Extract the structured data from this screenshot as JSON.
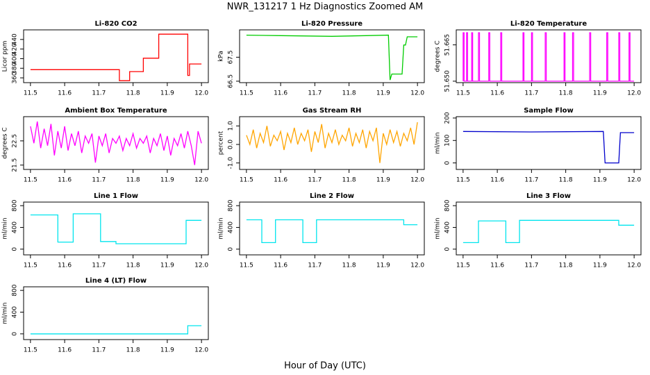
{
  "title": "NWR_131217  1 Hz Diagnostics Zoomed AM",
  "x_label": "Hour of Day (UTC)",
  "chart_data": [
    {
      "type": "line",
      "title": "Li-820 CO2",
      "ylabel": "Licor ppm",
      "color": "#ff0000",
      "xlim": [
        11.48,
        12.02
      ],
      "ylim": [
        350,
        460
      ],
      "xticks": [
        11.5,
        11.6,
        11.7,
        11.8,
        11.9,
        {
          "value": 12,
          "label": "12.0"
        }
      ],
      "yticks": [
        360,
        380,
        400,
        420,
        440
      ],
      "x": [
        11.5,
        11.76,
        11.76,
        11.79,
        11.79,
        11.83,
        11.83,
        11.875,
        11.875,
        11.96,
        11.96,
        11.965,
        11.965,
        12.0
      ],
      "values": [
        377,
        377,
        354,
        354,
        373,
        373,
        401,
        401,
        451,
        451,
        365,
        365,
        389,
        389
      ]
    },
    {
      "type": "line",
      "title": "Li-820 Pressure",
      "ylabel": "kPa",
      "color": "#00cc00",
      "xlim": [
        11.48,
        12.02
      ],
      "ylim": [
        66.44,
        68.64
      ],
      "xticks": [
        11.5,
        11.6,
        11.7,
        11.8,
        11.9,
        {
          "value": 12,
          "label": "12.0"
        }
      ],
      "yticks": [
        66.5,
        67.5
      ],
      "x": [
        11.5,
        11.6,
        11.75,
        11.85,
        11.915,
        11.92,
        11.925,
        11.955,
        11.96,
        11.965,
        11.97,
        12.0
      ],
      "values": [
        68.42,
        68.4,
        68.37,
        68.4,
        68.42,
        66.55,
        66.8,
        66.8,
        68.01,
        68.01,
        68.35,
        68.35
      ]
    },
    {
      "type": "line",
      "title": "Li-820 Temperature",
      "ylabel": "degrees C",
      "color": "#ff00ff",
      "xlim": [
        11.48,
        12.02
      ],
      "ylim": [
        51.6494,
        51.6712
      ],
      "xticks": [
        11.5,
        11.6,
        11.7,
        11.8,
        11.9,
        {
          "value": 12,
          "label": "12.0"
        }
      ],
      "yticks": [
        {
          "value": 51.65,
          "label": "51.650"
        },
        {
          "value": 51.665,
          "label": "51.665"
        }
      ],
      "x": [
        11.5,
        11.5,
        11.503,
        11.503,
        11.51,
        11.51,
        11.513,
        11.513,
        11.525,
        11.525,
        11.528,
        11.528,
        11.545,
        11.545,
        11.548,
        11.548,
        11.575,
        11.575,
        11.578,
        11.578,
        11.61,
        11.61,
        11.613,
        11.613,
        11.675,
        11.675,
        11.678,
        11.678,
        11.7,
        11.7,
        11.703,
        11.703,
        11.74,
        11.74,
        11.743,
        11.743,
        11.795,
        11.795,
        11.798,
        11.798,
        11.82,
        11.82,
        11.823,
        11.823,
        11.87,
        11.87,
        11.873,
        11.873,
        11.92,
        11.92,
        11.923,
        11.923,
        11.955,
        11.955,
        11.958,
        11.958,
        11.985,
        11.985,
        11.988,
        11.988,
        12.0
      ],
      "values": [
        51.65,
        51.67,
        51.67,
        51.65,
        51.65,
        51.67,
        51.67,
        51.65,
        51.65,
        51.67,
        51.67,
        51.65,
        51.65,
        51.67,
        51.67,
        51.65,
        51.65,
        51.67,
        51.67,
        51.65,
        51.65,
        51.67,
        51.67,
        51.65,
        51.65,
        51.67,
        51.67,
        51.65,
        51.65,
        51.67,
        51.67,
        51.65,
        51.65,
        51.67,
        51.67,
        51.65,
        51.65,
        51.67,
        51.67,
        51.65,
        51.65,
        51.67,
        51.67,
        51.65,
        51.65,
        51.67,
        51.67,
        51.65,
        51.65,
        51.67,
        51.67,
        51.65,
        51.65,
        51.67,
        51.67,
        51.65,
        51.65,
        51.67,
        51.67,
        51.65,
        51.65
      ]
    },
    {
      "type": "line",
      "title": "Ambient Box Temperature",
      "ylabel": "degrees C",
      "color": "#ff00ff",
      "xlim": [
        11.48,
        12.02
      ],
      "ylim": [
        21.32,
        23.5
      ],
      "xticks": [
        11.5,
        11.6,
        11.7,
        11.8,
        11.9,
        {
          "value": 12,
          "label": "12.0"
        }
      ],
      "yticks": [
        21.5,
        22.5
      ],
      "x": [
        11.5,
        11.51,
        11.52,
        11.53,
        11.54,
        11.55,
        11.56,
        11.57,
        11.58,
        11.59,
        11.6,
        11.61,
        11.62,
        11.63,
        11.64,
        11.65,
        11.66,
        11.67,
        11.68,
        11.69,
        11.7,
        11.71,
        11.72,
        11.73,
        11.74,
        11.75,
        11.76,
        11.77,
        11.78,
        11.79,
        11.8,
        11.81,
        11.82,
        11.83,
        11.84,
        11.85,
        11.86,
        11.87,
        11.88,
        11.89,
        11.9,
        11.91,
        11.92,
        11.93,
        11.94,
        11.95,
        11.96,
        11.97,
        11.98,
        11.99,
        12.0
      ],
      "values": [
        23.1,
        22.4,
        23.3,
        22.2,
        23.0,
        22.3,
        23.2,
        21.9,
        22.9,
        22.2,
        23.1,
        22.1,
        22.8,
        22.3,
        22.9,
        22.0,
        22.7,
        22.4,
        22.8,
        21.6,
        22.7,
        22.3,
        22.8,
        22.0,
        22.6,
        22.4,
        22.7,
        22.1,
        22.6,
        22.3,
        22.8,
        22.2,
        22.6,
        22.4,
        22.7,
        22.0,
        22.6,
        22.3,
        22.8,
        22.1,
        22.7,
        21.9,
        22.6,
        22.3,
        22.8,
        22.2,
        22.9,
        22.3,
        21.5,
        22.9,
        22.4
      ]
    },
    {
      "type": "line",
      "title": "Gas Stream RH",
      "ylabel": "percent",
      "color": "#ffa500",
      "xlim": [
        11.48,
        12.02
      ],
      "ylim": [
        -1.35,
        1.5
      ],
      "xticks": [
        11.5,
        11.6,
        11.7,
        11.8,
        11.9,
        {
          "value": 12,
          "label": "12.0"
        }
      ],
      "yticks": [
        {
          "value": -1,
          "label": "-1.0"
        },
        {
          "value": 0,
          "label": "0.0"
        },
        {
          "value": 1,
          "label": "1.0"
        }
      ],
      "x": [
        11.5,
        11.51,
        11.52,
        11.53,
        11.54,
        11.55,
        11.56,
        11.57,
        11.58,
        11.59,
        11.6,
        11.61,
        11.62,
        11.63,
        11.64,
        11.65,
        11.66,
        11.67,
        11.68,
        11.69,
        11.7,
        11.71,
        11.72,
        11.73,
        11.74,
        11.75,
        11.76,
        11.77,
        11.78,
        11.79,
        11.8,
        11.81,
        11.82,
        11.83,
        11.84,
        11.85,
        11.86,
        11.87,
        11.88,
        11.89,
        11.9,
        11.91,
        11.92,
        11.93,
        11.94,
        11.95,
        11.96,
        11.97,
        11.98,
        11.99,
        12.0
      ],
      "values": [
        0.5,
        0.0,
        0.8,
        -0.2,
        0.6,
        0.1,
        1.0,
        -0.1,
        0.5,
        0.2,
        0.7,
        -0.3,
        0.6,
        0.1,
        0.9,
        0.0,
        0.6,
        0.2,
        0.8,
        -0.4,
        0.7,
        0.1,
        1.1,
        -0.2,
        0.6,
        0.1,
        0.8,
        0.0,
        0.5,
        0.2,
        0.9,
        -0.1,
        0.6,
        0.1,
        0.8,
        -0.2,
        0.7,
        0.2,
        0.9,
        -1.0,
        0.6,
        0.0,
        0.8,
        0.1,
        0.7,
        -0.1,
        0.6,
        0.2,
        0.9,
        0.0,
        1.2
      ]
    },
    {
      "type": "line",
      "title": "Sample Flow",
      "ylabel": "ml/min",
      "color": "#0000cc",
      "xlim": [
        11.48,
        12.02
      ],
      "ylim": [
        -29,
        206
      ],
      "xticks": [
        11.5,
        11.6,
        11.7,
        11.8,
        11.9,
        {
          "value": 12,
          "label": "12.0"
        }
      ],
      "yticks": [
        0,
        100,
        200
      ],
      "x": [
        11.5,
        11.7,
        11.91,
        11.915,
        11.955,
        11.96,
        12.0
      ],
      "values": [
        140,
        138,
        140,
        0,
        0,
        135,
        135
      ]
    },
    {
      "type": "line",
      "title": "Line 1 Flow",
      "ylabel": "ml/min",
      "color": "#00e5ee",
      "xlim": [
        11.48,
        12.02
      ],
      "ylim": [
        -105,
        866
      ],
      "xticks": [
        11.5,
        11.6,
        11.7,
        11.8,
        11.9,
        {
          "value": 12,
          "label": "12.0"
        }
      ],
      "yticks": [
        0,
        400,
        800
      ],
      "x": [
        11.5,
        11.58,
        11.58,
        11.625,
        11.625,
        11.705,
        11.705,
        11.75,
        11.75,
        11.955,
        11.955,
        12.0
      ],
      "values": [
        630,
        630,
        130,
        130,
        650,
        650,
        140,
        140,
        100,
        100,
        530,
        530
      ]
    },
    {
      "type": "line",
      "title": "Line 2 Flow",
      "ylabel": "ml/min",
      "color": "#00e5ee",
      "xlim": [
        11.48,
        12.02
      ],
      "ylim": [
        -105,
        866
      ],
      "xticks": [
        11.5,
        11.6,
        11.7,
        11.8,
        11.9,
        {
          "value": 12,
          "label": "12.0"
        }
      ],
      "yticks": [
        0,
        400,
        800
      ],
      "x": [
        11.5,
        11.545,
        11.545,
        11.585,
        11.585,
        11.665,
        11.665,
        11.705,
        11.705,
        11.96,
        11.96,
        12.0
      ],
      "values": [
        540,
        540,
        120,
        120,
        540,
        540,
        120,
        120,
        540,
        540,
        450,
        450
      ]
    },
    {
      "type": "line",
      "title": "Line 3 Flow",
      "ylabel": "ml/min",
      "color": "#00e5ee",
      "xlim": [
        11.48,
        12.02
      ],
      "ylim": [
        -105,
        866
      ],
      "xticks": [
        11.5,
        11.6,
        11.7,
        11.8,
        11.9,
        {
          "value": 12,
          "label": "12.0"
        }
      ],
      "yticks": [
        0,
        400,
        800
      ],
      "x": [
        11.5,
        11.545,
        11.545,
        11.625,
        11.625,
        11.665,
        11.665,
        11.955,
        11.955,
        12.0
      ],
      "values": [
        120,
        120,
        520,
        520,
        120,
        120,
        530,
        530,
        440,
        440
      ]
    },
    {
      "type": "line",
      "title": "Line 4 (LT) Flow",
      "ylabel": "ml/min",
      "color": "#00e5ee",
      "xlim": [
        11.48,
        12.02
      ],
      "ylim": [
        -105,
        866
      ],
      "xticks": [
        11.5,
        11.6,
        11.7,
        11.8,
        11.9,
        {
          "value": 12,
          "label": "12.0"
        }
      ],
      "yticks": [
        0,
        400,
        800
      ],
      "x": [
        11.5,
        11.96,
        11.96,
        12.0
      ],
      "values": [
        0,
        0,
        150,
        150
      ]
    }
  ]
}
